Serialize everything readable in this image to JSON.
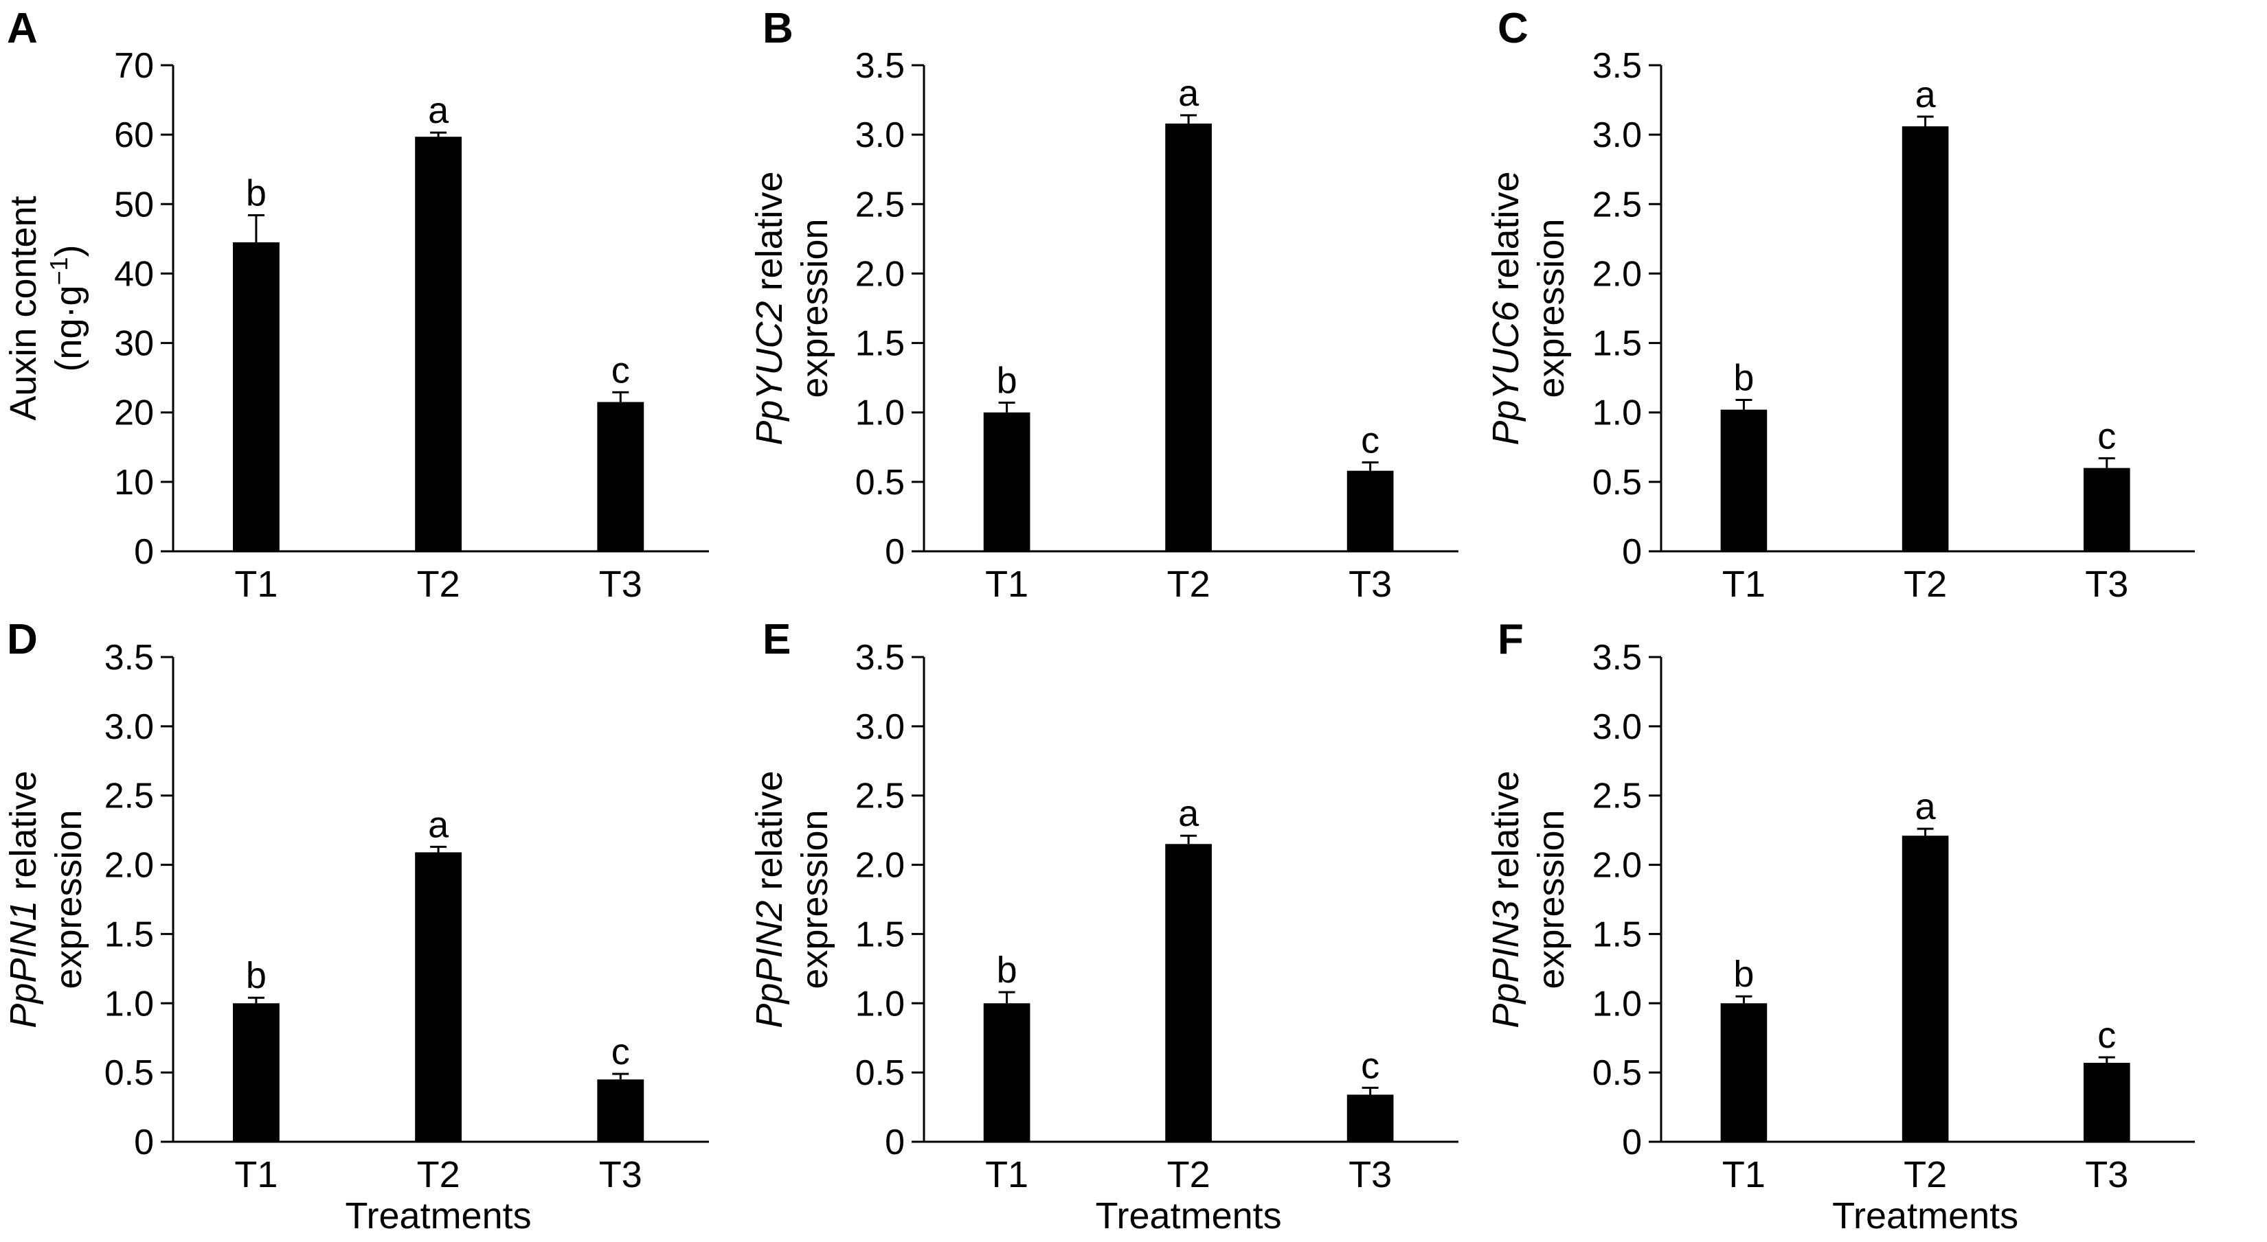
{
  "colors": {
    "bar": "#000000",
    "axis": "#000000",
    "background": "#ffffff"
  },
  "chart_data": [
    {
      "panel": "A",
      "type": "bar",
      "categories": [
        "T1",
        "T2",
        "T3"
      ],
      "values": [
        44.5,
        59.7,
        21.5
      ],
      "errors": [
        3.9,
        0.6,
        1.4
      ],
      "significance": [
        "b",
        "a",
        "c"
      ],
      "ylabel_lines": [
        [
          "Auxin content"
        ],
        [
          "(ng·g",
          "−1",
          ")"
        ]
      ],
      "ylim": [
        0,
        70
      ],
      "yticks": [
        "0",
        "10",
        "20",
        "30",
        "40",
        "50",
        "60",
        "70"
      ],
      "xlabel": ""
    },
    {
      "panel": "B",
      "type": "bar",
      "categories": [
        "T1",
        "T2",
        "T3"
      ],
      "values": [
        1.0,
        3.08,
        0.58
      ],
      "errors": [
        0.07,
        0.06,
        0.06
      ],
      "significance": [
        "b",
        "a",
        "c"
      ],
      "ylabel_gene": "PpYUC2",
      "ylabel_rest": " relative",
      "ylabel_line2": "expression",
      "ylim": [
        0,
        3.5
      ],
      "yticks": [
        "0",
        "0.5",
        "1.0",
        "1.5",
        "2.0",
        "2.5",
        "3.0",
        "3.5"
      ],
      "xlabel": ""
    },
    {
      "panel": "C",
      "type": "bar",
      "categories": [
        "T1",
        "T2",
        "T3"
      ],
      "values": [
        1.02,
        3.06,
        0.6
      ],
      "errors": [
        0.07,
        0.07,
        0.07
      ],
      "significance": [
        "b",
        "a",
        "c"
      ],
      "ylabel_gene": "PpYUC6",
      "ylabel_rest": " relative",
      "ylabel_line2": "expression",
      "ylim": [
        0,
        3.5
      ],
      "yticks": [
        "0",
        "0.5",
        "1.0",
        "1.5",
        "2.0",
        "2.5",
        "3.0",
        "3.5"
      ],
      "xlabel": ""
    },
    {
      "panel": "D",
      "type": "bar",
      "categories": [
        "T1",
        "T2",
        "T3"
      ],
      "values": [
        1.0,
        2.09,
        0.45
      ],
      "errors": [
        0.04,
        0.04,
        0.04
      ],
      "significance": [
        "b",
        "a",
        "c"
      ],
      "ylabel_gene": "PpPIN1",
      "ylabel_rest": " relative",
      "ylabel_line2": "expression",
      "ylim": [
        0,
        3.5
      ],
      "yticks": [
        "0",
        "0.5",
        "1.0",
        "1.5",
        "2.0",
        "2.5",
        "3.0",
        "3.5"
      ],
      "xlabel": "Treatments"
    },
    {
      "panel": "E",
      "type": "bar",
      "categories": [
        "T1",
        "T2",
        "T3"
      ],
      "values": [
        1.0,
        2.15,
        0.34
      ],
      "errors": [
        0.08,
        0.06,
        0.05
      ],
      "significance": [
        "b",
        "a",
        "c"
      ],
      "ylabel_gene": "PpPIN2",
      "ylabel_rest": " relative",
      "ylabel_line2": "expression",
      "ylim": [
        0,
        3.5
      ],
      "yticks": [
        "0",
        "0.5",
        "1.0",
        "1.5",
        "2.0",
        "2.5",
        "3.0",
        "3.5"
      ],
      "xlabel": "Treatments"
    },
    {
      "panel": "F",
      "type": "bar",
      "categories": [
        "T1",
        "T2",
        "T3"
      ],
      "values": [
        1.0,
        2.21,
        0.57
      ],
      "errors": [
        0.05,
        0.05,
        0.04
      ],
      "significance": [
        "b",
        "a",
        "c"
      ],
      "ylabel_gene": "PpPIN3",
      "ylabel_rest": " relative",
      "ylabel_line2": "expression",
      "ylim": [
        0,
        3.5
      ],
      "yticks": [
        "0",
        "0.5",
        "1.0",
        "1.5",
        "2.0",
        "2.5",
        "3.0",
        "3.5"
      ],
      "xlabel": "Treatments"
    }
  ]
}
